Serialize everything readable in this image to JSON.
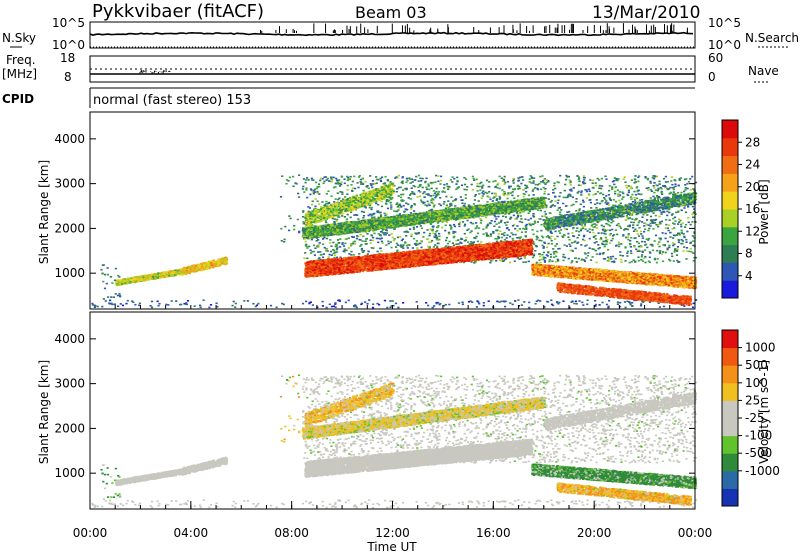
{
  "header": {
    "station": "Pykkvibaer (fitACF)",
    "beam": "Beam 03",
    "date": "13/Mar/2010"
  },
  "top_panels": {
    "noise": {
      "left_label": "N.Sky",
      "right_label": "N.Search",
      "left_ticks": [
        "10^5",
        "10^0"
      ],
      "right_ticks": [
        "10^5",
        "10^0"
      ]
    },
    "frequency": {
      "left_label_line1": "Freq.",
      "left_label_line2": "[MHz]",
      "right_label": "Nave",
      "left_ticks": [
        "18",
        "8"
      ],
      "right_ticks": [
        "60",
        "0"
      ]
    },
    "cpid": {
      "label": "CPID",
      "text": "normal (fast stereo) 153"
    }
  },
  "chart_data": [
    {
      "type": "heatmap",
      "title": "",
      "ylabel": "Slant Range [km]",
      "xlabel": "",
      "ylim": [
        200,
        4600
      ],
      "yticks": [
        1000,
        2000,
        3000,
        4000
      ],
      "xlim": [
        0,
        24
      ],
      "colorbar": {
        "label": "Power [dB]",
        "ticks": [
          4,
          8,
          12,
          16,
          20,
          24,
          28
        ],
        "range": [
          0,
          32
        ],
        "colors": [
          "#1a1adc",
          "#2d56b5",
          "#2f7d55",
          "#3aa540",
          "#a8d025",
          "#f0d41c",
          "#f5a21a",
          "#f06d14",
          "#e8380c",
          "#dc0a0a"
        ]
      }
    },
    {
      "type": "heatmap",
      "title": "",
      "ylabel": "Slant Range [km]",
      "xlabel": "Time UT",
      "ylim": [
        200,
        4600
      ],
      "yticks": [
        1000,
        2000,
        3000,
        4000
      ],
      "xlim": [
        0,
        24
      ],
      "xtick_labels": [
        "00:00",
        "04:00",
        "08:00",
        "12:00",
        "16:00",
        "20:00",
        "00:00"
      ],
      "colorbar": {
        "label": "Velocity [m s^-1]",
        "ticks": [
          "1000",
          "500",
          "100",
          "25",
          "-25",
          "-100",
          "-500",
          "-1000"
        ],
        "colors": [
          "#1633b4",
          "#2c6aa7",
          "#2f8a3a",
          "#62c22e",
          "#c8c8c0",
          "#c8c8c0",
          "#f0c020",
          "#f59018",
          "#f05a10",
          "#e01010"
        ]
      }
    }
  ]
}
